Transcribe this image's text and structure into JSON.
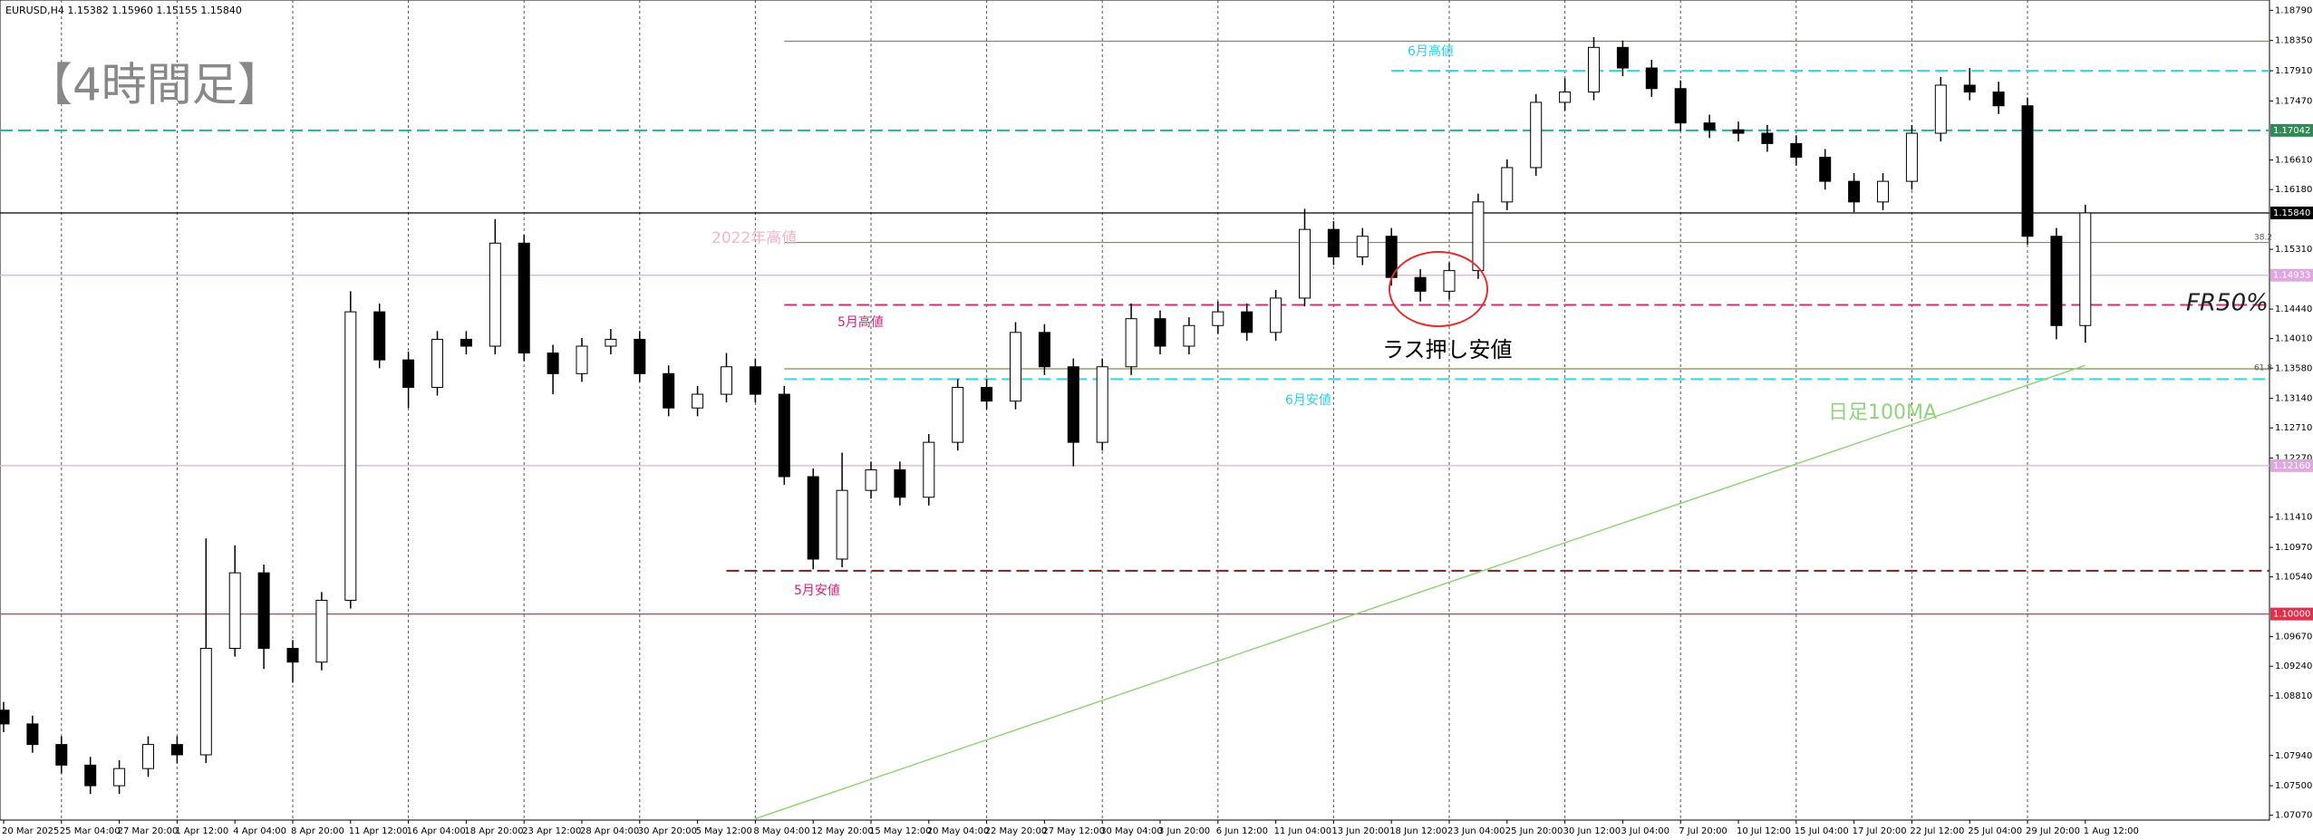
{
  "chart_data": {
    "type": "candlestick",
    "title": "EURUSD,H4  1.15382 1.15960 1.15155 1.15840",
    "categories": [
      "20 Mar 2025",
      null,
      "25 Mar 04:00",
      null,
      "27 Mar 20:00",
      null,
      "1 Apr 12:00",
      null,
      "4 Apr 04:00",
      null,
      "8 Apr 20:00",
      null,
      "11 Apr 12:00",
      null,
      "16 Apr 04:00",
      null,
      "18 Apr 20:00",
      null,
      "23 Apr 12:00",
      null,
      "28 Apr 04:00",
      null,
      "30 Apr 20:00",
      null,
      "5 May 12:00",
      null,
      "8 May 04:00",
      null,
      "12 May 20:00",
      null,
      "15 May 12:00",
      null,
      "20 May 04:00",
      null,
      "22 May 20:00",
      null,
      "27 May 12:00",
      null,
      "30 May 04:00",
      null,
      "3 Jun 20:00",
      null,
      "6 Jun 12:00",
      null,
      "11 Jun 04:00",
      null,
      "13 Jun 20:00",
      null,
      "18 Jun 12:00",
      null,
      "23 Jun 04:00",
      null,
      "25 Jun 20:00",
      null,
      "30 Jun 12:00",
      null,
      "3 Jul 04:00",
      null,
      "7 Jul 20:00",
      null,
      "10 Jul 12:00",
      null,
      "15 Jul 04:00",
      null,
      "17 Jul 20:00",
      null,
      "22 Jul 12:00",
      null,
      "25 Jul 04:00",
      null,
      "29 Jul 20:00",
      null,
      "1 Aug 12:00"
    ],
    "open": [
      1.086,
      1.084,
      1.081,
      1.078,
      1.075,
      1.0775,
      1.081,
      1.0795,
      1.095,
      1.106,
      1.095,
      1.093,
      1.102,
      1.144,
      1.137,
      1.133,
      1.14,
      1.139,
      1.154,
      1.138,
      1.135,
      1.139,
      1.14,
      1.135,
      1.13,
      1.132,
      1.136,
      1.132,
      1.12,
      1.108,
      1.118,
      1.121,
      1.117,
      1.125,
      1.133,
      1.131,
      1.141,
      1.136,
      1.125,
      1.136,
      1.143,
      1.139,
      1.142,
      1.144,
      1.141,
      1.146,
      1.156,
      1.152,
      1.155,
      1.149,
      1.147,
      1.15,
      1.16,
      1.165,
      1.1745,
      1.176,
      1.1825,
      1.1795,
      1.1765,
      1.1715,
      1.1705,
      1.17,
      1.1685,
      1.1665,
      1.163,
      1.16,
      1.163,
      1.17,
      1.177,
      1.176,
      1.174,
      1.155,
      1.142
    ],
    "high": [
      1.0872,
      1.0852,
      1.0822,
      1.0792,
      1.0787,
      1.0822,
      1.0822,
      1.111,
      1.11,
      1.1072,
      1.0962,
      1.1032,
      1.147,
      1.1452,
      1.1382,
      1.1412,
      1.1412,
      1.1575,
      1.1552,
      1.1392,
      1.1402,
      1.1415,
      1.1412,
      1.1362,
      1.1332,
      1.138,
      1.1372,
      1.1332,
      1.1212,
      1.1235,
      1.1222,
      1.1222,
      1.1262,
      1.1342,
      1.1342,
      1.1425,
      1.1422,
      1.1372,
      1.1372,
      1.1452,
      1.1442,
      1.1432,
      1.1455,
      1.1452,
      1.1472,
      1.159,
      1.1572,
      1.1562,
      1.1562,
      1.1502,
      1.1512,
      1.1612,
      1.1662,
      1.1757,
      1.178,
      1.184,
      1.1835,
      1.1807,
      1.1777,
      1.1727,
      1.1717,
      1.1712,
      1.1697,
      1.1677,
      1.1642,
      1.1642,
      1.1712,
      1.1782,
      1.1795,
      1.1775,
      1.1752,
      1.1562,
      1.1596
    ],
    "low": [
      1.0828,
      1.0798,
      1.0768,
      1.0738,
      1.0738,
      1.0763,
      1.0783,
      1.0783,
      1.0938,
      1.092,
      1.09,
      1.0918,
      1.1008,
      1.1358,
      1.13,
      1.1318,
      1.1378,
      1.1378,
      1.1368,
      1.132,
      1.1338,
      1.1378,
      1.1338,
      1.1288,
      1.1288,
      1.1308,
      1.1308,
      1.1188,
      1.1065,
      1.1068,
      1.1168,
      1.1158,
      1.1158,
      1.1238,
      1.1298,
      1.1298,
      1.1348,
      1.1215,
      1.1238,
      1.1348,
      1.1378,
      1.1378,
      1.1408,
      1.1398,
      1.1398,
      1.1448,
      1.1508,
      1.1508,
      1.1478,
      1.1455,
      1.1458,
      1.1488,
      1.1588,
      1.1638,
      1.1733,
      1.1748,
      1.1783,
      1.1753,
      1.1703,
      1.1693,
      1.1688,
      1.1673,
      1.1653,
      1.1618,
      1.1585,
      1.1588,
      1.1618,
      1.1688,
      1.1748,
      1.1728,
      1.1538,
      1.14,
      1.1395
    ],
    "close": [
      1.084,
      1.081,
      1.078,
      1.075,
      1.0775,
      1.081,
      1.0795,
      1.095,
      1.106,
      1.095,
      1.093,
      1.102,
      1.144,
      1.137,
      1.133,
      1.14,
      1.139,
      1.154,
      1.138,
      1.135,
      1.139,
      1.14,
      1.135,
      1.13,
      1.132,
      1.136,
      1.132,
      1.12,
      1.108,
      1.118,
      1.121,
      1.117,
      1.125,
      1.133,
      1.131,
      1.141,
      1.136,
      1.125,
      1.136,
      1.143,
      1.139,
      1.142,
      1.144,
      1.141,
      1.146,
      1.156,
      1.152,
      1.155,
      1.149,
      1.147,
      1.15,
      1.16,
      1.165,
      1.1745,
      1.176,
      1.1825,
      1.1795,
      1.1765,
      1.1715,
      1.1705,
      1.17,
      1.1685,
      1.1665,
      1.163,
      1.16,
      1.163,
      1.17,
      1.177,
      1.176,
      1.174,
      1.155,
      1.142,
      1.1584
    ],
    "ylim": [
      1.07,
      1.1894
    ],
    "yticks": [
      {
        "value": 1.1879,
        "label": "1.18790"
      },
      {
        "value": 1.1835,
        "label": "1.18350"
      },
      {
        "value": 1.1791,
        "label": "1.17910"
      },
      {
        "value": 1.1747,
        "label": "1.17470"
      },
      {
        "value": 1.1661,
        "label": "1.16610"
      },
      {
        "value": 1.1618,
        "label": "1.16180"
      },
      {
        "value": 1.1531,
        "label": "1.15310"
      },
      {
        "value": 1.1444,
        "label": "1.14440"
      },
      {
        "value": 1.1401,
        "label": "1.14010"
      },
      {
        "value": 1.1358,
        "label": "1.13580"
      },
      {
        "value": 1.1314,
        "label": "1.13140"
      },
      {
        "value": 1.1271,
        "label": "1.12710"
      },
      {
        "value": 1.1227,
        "label": "1.12270"
      },
      {
        "value": 1.1141,
        "label": "1.11410"
      },
      {
        "value": 1.1097,
        "label": "1.10970"
      },
      {
        "value": 1.1054,
        "label": "1.10540"
      },
      {
        "value": 1.0967,
        "label": "1.09670"
      },
      {
        "value": 1.0924,
        "label": "1.09240"
      },
      {
        "value": 1.0881,
        "label": "1.08810"
      },
      {
        "value": 1.0794,
        "label": "1.07940"
      },
      {
        "value": 1.075,
        "label": "1.07500"
      },
      {
        "value": 1.0707,
        "label": "1.07070"
      }
    ],
    "grid": true,
    "up_color": "#ffffff",
    "down_color": "#000000",
    "levels": [
      {
        "value": 1.1834,
        "color": "#7f8f4f",
        "from": 27
      },
      {
        "value": 1.1791,
        "color": "#33d6e0",
        "dash": true,
        "from": 48
      },
      {
        "value": 1.17042,
        "label": "1.17042",
        "color": "#20b2aa",
        "dash": true,
        "box": "#2e8b57"
      },
      {
        "value": 1.1584,
        "label": "1.15840",
        "color": "#000000",
        "box": "#000000"
      },
      {
        "value": 1.1541,
        "color": "#7f8f4f",
        "from": 27
      },
      {
        "value": 1.14933,
        "label": "1.14933",
        "color": "#e0a8e0",
        "box": "#e0a8e0"
      },
      {
        "value": 1.145,
        "color": "#cc3377",
        "dash": true,
        "from": 27
      },
      {
        "value": 1.1357,
        "color": "#7f8f4f",
        "from": 27
      },
      {
        "value": 1.1342,
        "color": "#33d6e0",
        "dash": true,
        "from": 27
      },
      {
        "value": 1.1216,
        "label": "1.12160",
        "color": "#e0a8e0",
        "box": "#e0a8e0"
      },
      {
        "value": 1.1063,
        "color": "#802020",
        "dash": true,
        "from": 25
      },
      {
        "value": 1.1,
        "label": "1.10000",
        "color": "#e0304a",
        "box": "#e0304a"
      }
    ],
    "annotations": [
      "【4時間足】",
      "2022年高値",
      "5月高値",
      "5月安値",
      "6月高値",
      "6月安値",
      "ラス押し安値",
      "FR50%",
      "38.2",
      "61.8"
    ],
    "ma": {
      "name": "日足100MA",
      "color": "#8fd47a",
      "from": [
        26,
        1.0702
      ],
      "to": [
        72,
        1.1362
      ]
    }
  }
}
